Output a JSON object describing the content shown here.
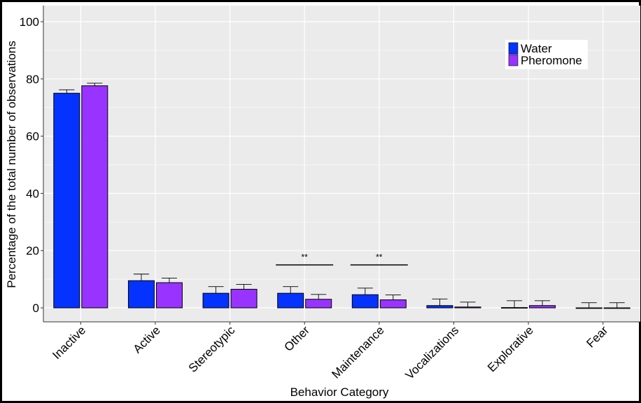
{
  "chart_data": {
    "type": "bar",
    "title": "",
    "xlabel": "Behavior Category",
    "ylabel": "Percentage of the total number of observations",
    "ylim": [
      0,
      103
    ],
    "yticks": [
      0,
      20,
      40,
      60,
      80,
      100
    ],
    "grid": true,
    "legend_position": "top-right",
    "categories": [
      "Inactive",
      "Active",
      "Stereotypic",
      "Other",
      "Maintenance",
      "Vocalizations",
      "Explorative",
      "Fear"
    ],
    "series": [
      {
        "name": "Water",
        "color": "#0433FF",
        "values": [
          75.0,
          9.5,
          5.1,
          5.1,
          4.6,
          0.8,
          0.1,
          0.0
        ],
        "errors": [
          1.2,
          2.3,
          2.3,
          2.3,
          2.3,
          2.3,
          2.4,
          1.8
        ]
      },
      {
        "name": "Pheromone",
        "color": "#9933FF",
        "values": [
          77.6,
          8.8,
          6.5,
          3.0,
          2.8,
          0.3,
          0.8,
          0.0
        ],
        "errors": [
          0.9,
          1.6,
          1.7,
          1.7,
          1.7,
          1.7,
          1.7,
          1.8
        ]
      }
    ],
    "annotations": [
      {
        "text": "**",
        "category": "Other"
      },
      {
        "text": "**",
        "category": "Maintenance"
      }
    ]
  }
}
